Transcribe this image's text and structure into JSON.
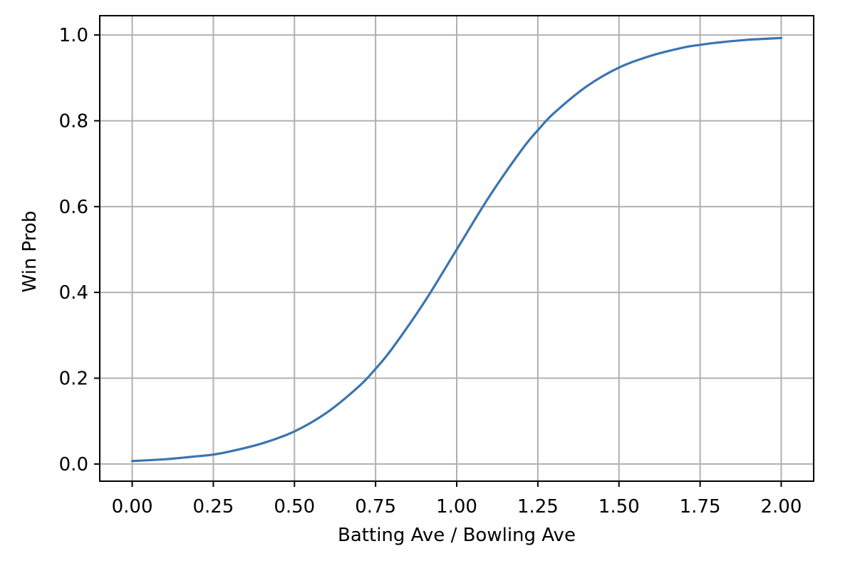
{
  "chart_data": {
    "type": "line",
    "title": "",
    "xlabel": "Batting Ave / Bowling Ave",
    "ylabel": "Win Prob",
    "xlim": [
      -0.1,
      2.1
    ],
    "ylim": [
      -0.04,
      1.045
    ],
    "x_ticks": [
      0.0,
      0.25,
      0.5,
      0.75,
      1.0,
      1.25,
      1.5,
      1.75,
      2.0
    ],
    "x_tick_labels": [
      "0.00",
      "0.25",
      "0.50",
      "0.75",
      "1.00",
      "1.25",
      "1.50",
      "1.75",
      "2.00"
    ],
    "y_ticks": [
      0.0,
      0.2,
      0.4,
      0.6,
      0.8,
      1.0
    ],
    "y_tick_labels": [
      "0.0",
      "0.2",
      "0.4",
      "0.6",
      "0.8",
      "1.0"
    ],
    "grid": true,
    "series": [
      {
        "color": "#3a75b0",
        "x": [
          0.0,
          0.1,
          0.2,
          0.25,
          0.3,
          0.4,
          0.5,
          0.6,
          0.7,
          0.75,
          0.8,
          0.9,
          1.0,
          1.1,
          1.2,
          1.25,
          1.3,
          1.4,
          1.5,
          1.6,
          1.7,
          1.75,
          1.8,
          1.9,
          2.0
        ],
        "y": [
          0.007,
          0.011,
          0.018,
          0.022,
          0.029,
          0.048,
          0.076,
          0.12,
          0.182,
          0.222,
          0.268,
          0.377,
          0.5,
          0.623,
          0.732,
          0.778,
          0.818,
          0.88,
          0.924,
          0.952,
          0.971,
          0.977,
          0.982,
          0.989,
          0.993
        ]
      }
    ]
  }
}
